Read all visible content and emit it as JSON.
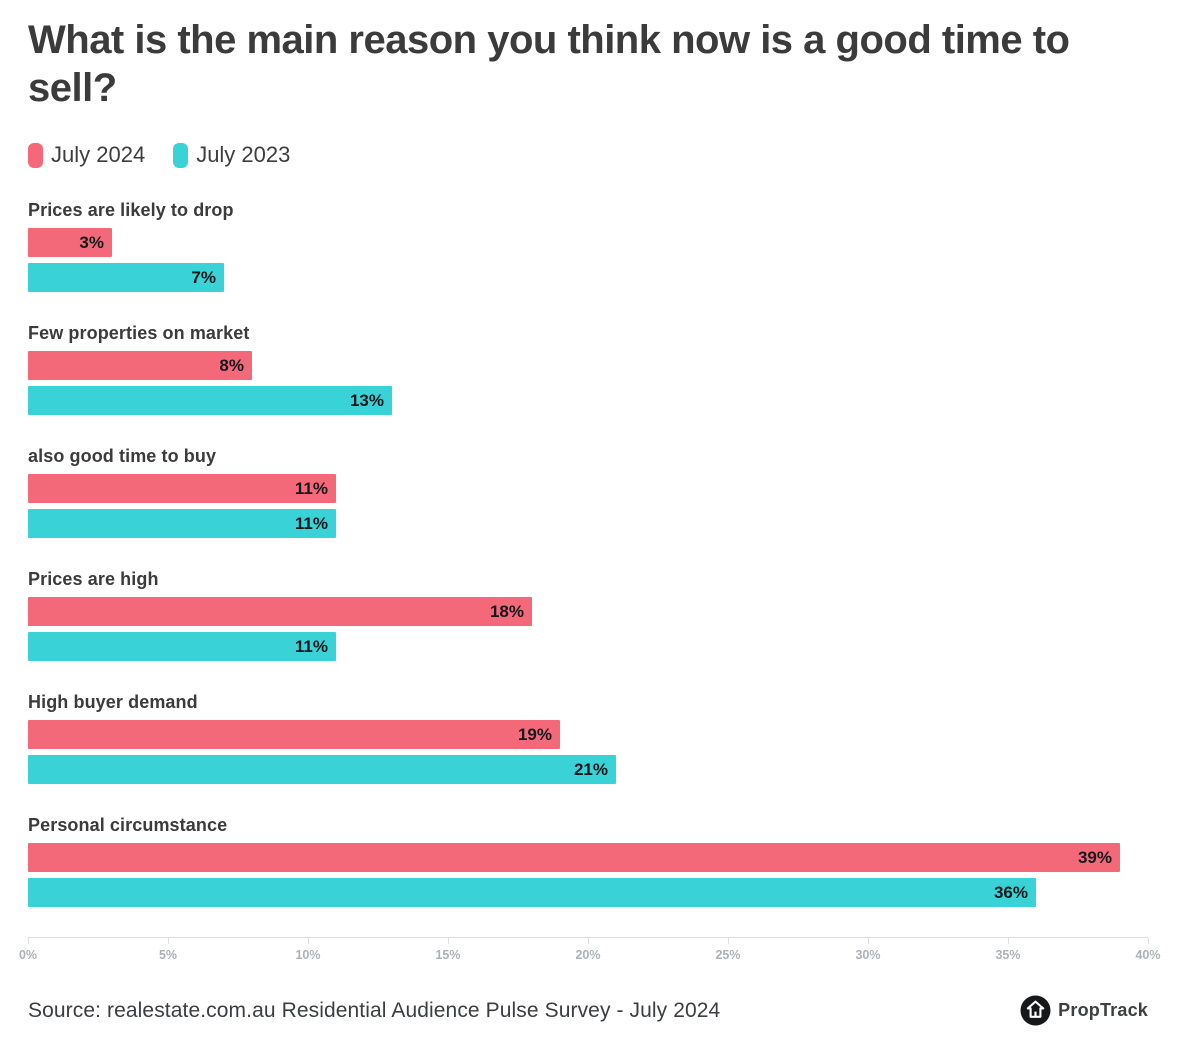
{
  "title": "What is the main reason you think now is a good time to sell?",
  "legend": [
    {
      "label": "July 2024",
      "color": "#f4697a"
    },
    {
      "label": "July 2023",
      "color": "#39d2d6"
    }
  ],
  "chart_data": {
    "type": "bar",
    "orientation": "horizontal",
    "title": "What is the main reason you think now is a good time to sell?",
    "categories": [
      "Prices are likely to drop",
      "Few properties on market",
      "also good time to buy",
      "Prices are high",
      "High buyer demand",
      "Personal circumstance"
    ],
    "series": [
      {
        "name": "July 2024",
        "color": "#f4697a",
        "values": [
          3,
          8,
          11,
          18,
          19,
          39
        ]
      },
      {
        "name": "July 2023",
        "color": "#39d2d6",
        "values": [
          7,
          13,
          11,
          11,
          21,
          36
        ]
      }
    ],
    "value_suffix": "%",
    "xlim": [
      0,
      40
    ],
    "x_ticks": [
      "0%",
      "5%",
      "10%",
      "15%",
      "20%",
      "25%",
      "30%",
      "35%",
      "40%"
    ],
    "grid": false,
    "legend_position": "top-left"
  },
  "footer": {
    "source": "Source: realestate.com.au Residential Audience Pulse Survey - July 2024",
    "brand": "PropTrack"
  }
}
